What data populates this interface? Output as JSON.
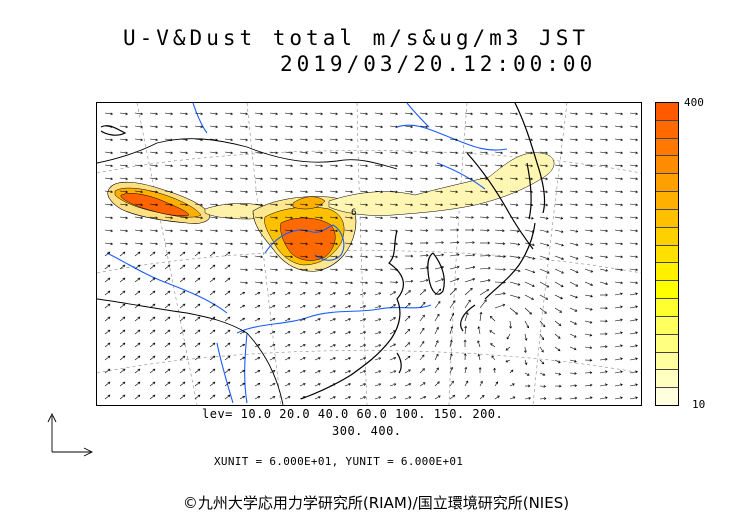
{
  "title": {
    "line1": "U-V&Dust total m/s&ug/m3 JST",
    "line2": "2019/03/20.12:00:00"
  },
  "colorbar": {
    "max_label": "400",
    "min_label": "10",
    "colors": [
      "#ff5a00",
      "#ff6a00",
      "#ff7800",
      "#ff8c00",
      "#ffa000",
      "#ffb000",
      "#ffc000",
      "#ffd000",
      "#ffe000",
      "#fff000",
      "#ffff00",
      "#ffff30",
      "#ffff60",
      "#ffff80",
      "#ffffa0",
      "#ffffc0",
      "#ffffe0"
    ]
  },
  "levels": {
    "line1": "lev= 10.0 20.0 40.0 60.0 100. 150. 200.",
    "line2": "300. 400."
  },
  "units": "XUNIT = 6.000E+01, YUNIT = 6.000E+01",
  "copyright": "©九州大学応用力学研究所(RIAM)/国立環境研究所(NIES)",
  "contour_label": "6",
  "map_colors": {
    "coast": "#000000",
    "border": "#000000",
    "river": "#1a5cff",
    "grid": "#888888",
    "arrow": "#000000"
  }
}
